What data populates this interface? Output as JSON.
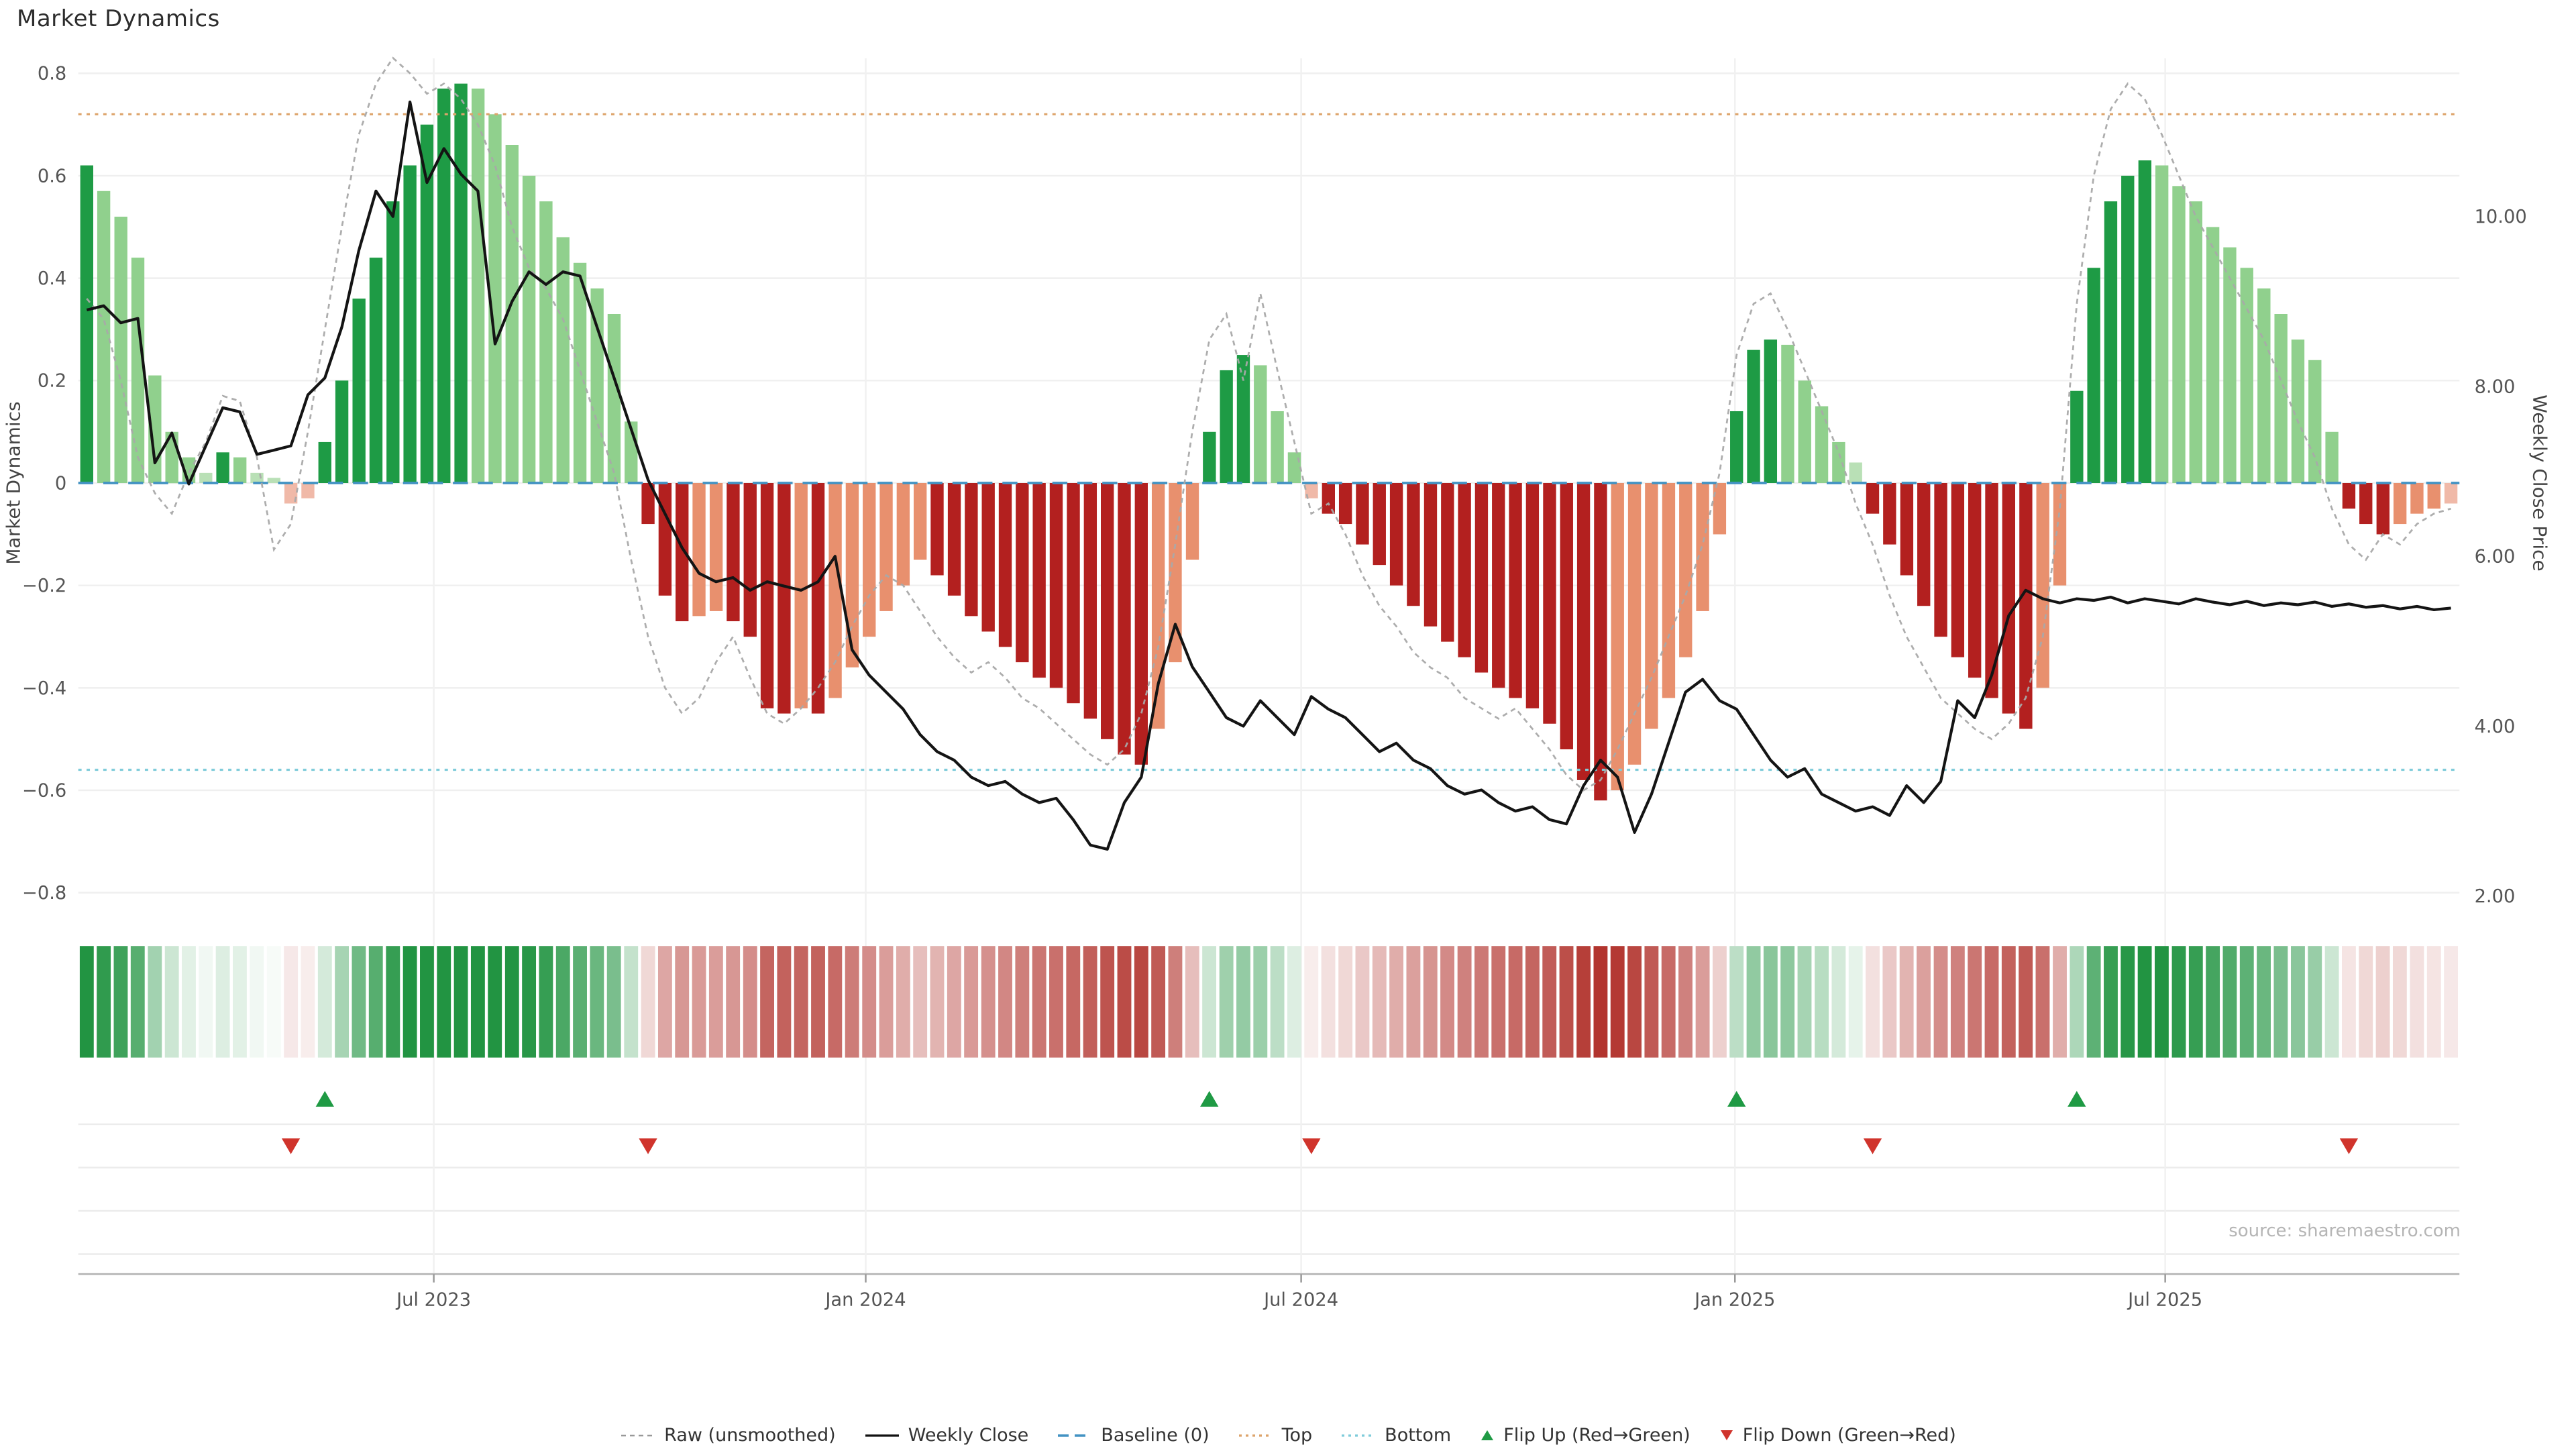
{
  "page": {
    "title": "Market Dynamics",
    "source": "source: sharemaestro.com",
    "background": "#ffffff"
  },
  "legend": {
    "items": [
      {
        "label": "Raw (unsmoothed)",
        "symbol": "dashed-gray-line"
      },
      {
        "label": "Weekly Close",
        "symbol": "solid-black-line"
      },
      {
        "label": "Baseline (0)",
        "symbol": "dashed-blue-line"
      },
      {
        "label": "Top",
        "symbol": "dotted-orange-line"
      },
      {
        "label": "Bottom",
        "symbol": "dotted-cyan-line"
      },
      {
        "label": "Flip Up (Red→Green)",
        "symbol": "green-up-triangle"
      },
      {
        "label": "Flip Down (Green→Red)",
        "symbol": "red-down-triangle"
      }
    ]
  },
  "chart_data": {
    "type": "combo",
    "title": "Market Dynamics",
    "n_points": 140,
    "x_axis": {
      "frequency": "weekly",
      "ticks": [
        {
          "label": "Jul 2023",
          "week": 20.4
        },
        {
          "label": "Jan 2024",
          "week": 45.8
        },
        {
          "label": "Jul 2024",
          "week": 71.4
        },
        {
          "label": "Jan 2025",
          "week": 96.9
        },
        {
          "label": "Jul 2025",
          "week": 122.2
        }
      ]
    },
    "left_axis": {
      "title": "Market Dynamics",
      "min": -0.9,
      "max": 0.85,
      "tick_labels": [
        "0.8",
        "0.6",
        "0.4",
        "0.2",
        "0",
        "−0.2",
        "−0.4",
        "−0.6",
        "−0.8"
      ],
      "tick_values": [
        0.8,
        0.6,
        0.4,
        0.2,
        0,
        -0.2,
        -0.4,
        -0.6,
        -0.8
      ]
    },
    "right_axis": {
      "title": "Weekly Close Price",
      "min": 1.5,
      "max": 11.9,
      "tick_labels": [
        "10.00",
        "8.00",
        "6.00",
        "4.00",
        "2.00"
      ],
      "tick_values": [
        10,
        8,
        6,
        4,
        2
      ]
    },
    "reference_lines": {
      "baseline": 0,
      "top": 0.72,
      "bottom": -0.56
    },
    "markers": {
      "flip_up_weeks": [
        14,
        66,
        97,
        117
      ],
      "flip_down_weeks": [
        12,
        33,
        72,
        105,
        133
      ]
    },
    "colors": {
      "bar_up_strong": "#1e9b45",
      "bar_up_soft": "#90d08d",
      "bar_up_pale": "#b9e0b6",
      "bar_down_strong": "#b3201f",
      "bar_down_soft": "#e8906e",
      "bar_down_pale": "#f0b9a8",
      "heat_up_base": "#229442",
      "heat_down_base": "#b2342e",
      "raw_line": "#a9a9a9",
      "close_line": "#141414",
      "baseline": "#4393c3",
      "top_line": "#dda46b",
      "bottom_line": "#7fccda",
      "flip_up": "#1f9a44",
      "flip_down": "#d0342c"
    },
    "series": [
      {
        "name": "Market Dynamics (smoothed bars)",
        "type": "bar",
        "axis": "left",
        "values": [
          0.62,
          0.57,
          0.52,
          0.44,
          0.21,
          0.1,
          0.05,
          0.02,
          0.06,
          0.05,
          0.02,
          0.01,
          -0.04,
          -0.03,
          0.08,
          0.2,
          0.36,
          0.44,
          0.55,
          0.62,
          0.7,
          0.77,
          0.78,
          0.77,
          0.72,
          0.66,
          0.6,
          0.55,
          0.48,
          0.43,
          0.38,
          0.33,
          0.12,
          -0.08,
          -0.22,
          -0.27,
          -0.26,
          -0.25,
          -0.27,
          -0.3,
          -0.44,
          -0.45,
          -0.44,
          -0.45,
          -0.42,
          -0.36,
          -0.3,
          -0.25,
          -0.2,
          -0.15,
          -0.18,
          -0.22,
          -0.26,
          -0.29,
          -0.32,
          -0.35,
          -0.38,
          -0.4,
          -0.43,
          -0.46,
          -0.5,
          -0.53,
          -0.55,
          -0.48,
          -0.35,
          -0.15,
          0.1,
          0.22,
          0.25,
          0.23,
          0.14,
          0.06,
          -0.03,
          -0.06,
          -0.08,
          -0.12,
          -0.16,
          -0.2,
          -0.24,
          -0.28,
          -0.31,
          -0.34,
          -0.37,
          -0.4,
          -0.42,
          -0.44,
          -0.47,
          -0.52,
          -0.58,
          -0.62,
          -0.6,
          -0.55,
          -0.48,
          -0.42,
          -0.34,
          -0.25,
          -0.1,
          0.14,
          0.26,
          0.28,
          0.27,
          0.2,
          0.15,
          0.08,
          0.04,
          -0.06,
          -0.12,
          -0.18,
          -0.24,
          -0.3,
          -0.34,
          -0.38,
          -0.42,
          -0.45,
          -0.48,
          -0.4,
          -0.2,
          0.18,
          0.42,
          0.55,
          0.6,
          0.63,
          0.62,
          0.58,
          0.55,
          0.5,
          0.46,
          0.42,
          0.38,
          0.33,
          0.28,
          0.24,
          0.1,
          -0.05,
          -0.08,
          -0.1,
          -0.08,
          -0.06,
          -0.05,
          -0.04
        ]
      },
      {
        "name": "Raw (unsmoothed)",
        "type": "line",
        "axis": "left",
        "values": [
          0.36,
          0.32,
          0.2,
          0.05,
          -0.02,
          -0.06,
          0.02,
          0.08,
          0.17,
          0.16,
          0.05,
          -0.13,
          -0.08,
          0.1,
          0.3,
          0.5,
          0.68,
          0.78,
          0.83,
          0.8,
          0.76,
          0.78,
          0.75,
          0.7,
          0.62,
          0.5,
          0.42,
          0.38,
          0.32,
          0.22,
          0.12,
          0.02,
          -0.15,
          -0.3,
          -0.4,
          -0.45,
          -0.42,
          -0.35,
          -0.3,
          -0.38,
          -0.45,
          -0.47,
          -0.44,
          -0.4,
          -0.35,
          -0.28,
          -0.22,
          -0.18,
          -0.2,
          -0.25,
          -0.3,
          -0.34,
          -0.37,
          -0.35,
          -0.38,
          -0.42,
          -0.44,
          -0.47,
          -0.5,
          -0.53,
          -0.55,
          -0.52,
          -0.45,
          -0.32,
          -0.12,
          0.1,
          0.28,
          0.33,
          0.2,
          0.37,
          0.22,
          0.08,
          -0.06,
          -0.04,
          -0.1,
          -0.18,
          -0.24,
          -0.28,
          -0.33,
          -0.36,
          -0.38,
          -0.42,
          -0.44,
          -0.46,
          -0.44,
          -0.48,
          -0.52,
          -0.57,
          -0.6,
          -0.58,
          -0.52,
          -0.45,
          -0.38,
          -0.3,
          -0.22,
          -0.12,
          0.02,
          0.25,
          0.35,
          0.37,
          0.3,
          0.22,
          0.14,
          0.06,
          -0.04,
          -0.12,
          -0.22,
          -0.3,
          -0.36,
          -0.42,
          -0.45,
          -0.48,
          -0.5,
          -0.47,
          -0.42,
          -0.3,
          -0.05,
          0.35,
          0.6,
          0.73,
          0.78,
          0.75,
          0.68,
          0.6,
          0.52,
          0.46,
          0.4,
          0.34,
          0.28,
          0.2,
          0.12,
          0.05,
          -0.05,
          -0.12,
          -0.15,
          -0.1,
          -0.12,
          -0.08,
          -0.06,
          -0.05
        ]
      },
      {
        "name": "Weekly Close",
        "type": "line",
        "axis": "right",
        "values": [
          8.9,
          8.95,
          8.75,
          8.8,
          7.1,
          7.45,
          6.85,
          7.3,
          7.75,
          7.7,
          7.2,
          7.25,
          7.3,
          7.9,
          8.1,
          8.7,
          9.6,
          10.3,
          10.0,
          11.35,
          10.4,
          10.8,
          10.5,
          10.3,
          8.5,
          9.0,
          9.35,
          9.2,
          9.35,
          9.3,
          8.7,
          8.1,
          7.5,
          6.9,
          6.5,
          6.1,
          5.8,
          5.7,
          5.75,
          5.6,
          5.7,
          5.65,
          5.6,
          5.7,
          6.0,
          4.9,
          4.6,
          4.4,
          4.2,
          3.9,
          3.7,
          3.6,
          3.4,
          3.3,
          3.35,
          3.2,
          3.1,
          3.15,
          2.9,
          2.6,
          2.55,
          3.1,
          3.4,
          4.5,
          5.2,
          4.7,
          4.4,
          4.1,
          4.0,
          4.3,
          4.1,
          3.9,
          4.35,
          4.2,
          4.1,
          3.9,
          3.7,
          3.8,
          3.6,
          3.5,
          3.3,
          3.2,
          3.25,
          3.1,
          3.0,
          3.05,
          2.9,
          2.85,
          3.3,
          3.6,
          3.4,
          2.75,
          3.2,
          3.8,
          4.4,
          4.55,
          4.3,
          4.2,
          3.9,
          3.6,
          3.4,
          3.5,
          3.2,
          3.1,
          3.0,
          3.05,
          2.95,
          3.3,
          3.1,
          3.35,
          4.3,
          4.1,
          4.6,
          5.3,
          5.6,
          5.5,
          5.45,
          5.5,
          5.48,
          5.52,
          5.45,
          5.5,
          5.47,
          5.44,
          5.5,
          5.46,
          5.43,
          5.47,
          5.42,
          5.45,
          5.43,
          5.46,
          5.41,
          5.44,
          5.4,
          5.42,
          5.38,
          5.41,
          5.37,
          5.39
        ]
      }
    ],
    "heatmap": {
      "description": "color strip derived from smoothed bar values (green positive, red negative, intensity by magnitude)"
    }
  }
}
